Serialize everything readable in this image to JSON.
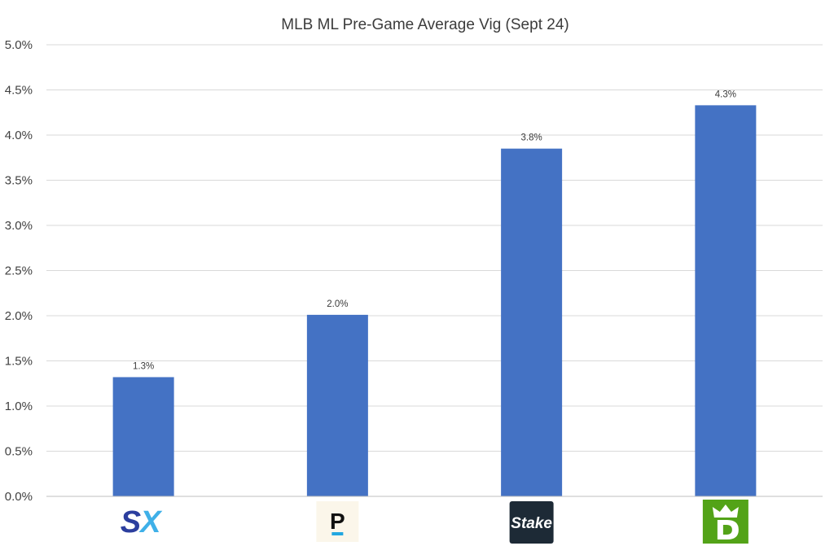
{
  "chart_data": {
    "type": "bar",
    "title": "MLB ML Pre-Game Average Vig (Sept 24)",
    "xlabel": "",
    "ylabel": "",
    "categories": [
      "SX",
      "P",
      "Stake",
      "DraftKings"
    ],
    "values": [
      1.32,
      2.01,
      3.85,
      4.33
    ],
    "data_labels": [
      "1.3%",
      "2.0%",
      "3.8%",
      "4.3%"
    ],
    "ylim": [
      0,
      5
    ],
    "yticks": [
      0,
      0.5,
      1,
      1.5,
      2,
      2.5,
      3,
      3.5,
      4,
      4.5,
      5
    ],
    "ytick_labels": [
      "0.0%",
      "0.5%",
      "1.0%",
      "1.5%",
      "2.0%",
      "2.5%",
      "3.0%",
      "3.5%",
      "4.0%",
      "4.5%",
      "5.0%"
    ],
    "grid": true,
    "legend": "none",
    "bar_color": "#4472c4",
    "category_logos": [
      {
        "icon": "sx-bet-logo",
        "text": "SX",
        "colors": [
          "#2c3e9e",
          "#3fb0e8"
        ]
      },
      {
        "icon": "prophetx-logo",
        "text": "P",
        "colors": [
          "#111111",
          "#22a7e0",
          "#fbf6ea"
        ]
      },
      {
        "icon": "stake-logo",
        "text": "Stake",
        "colors": [
          "#1d2a36",
          "#ffffff"
        ]
      },
      {
        "icon": "draftkings-logo",
        "text": "",
        "colors": [
          "#53a318",
          "#ffffff"
        ]
      }
    ]
  }
}
